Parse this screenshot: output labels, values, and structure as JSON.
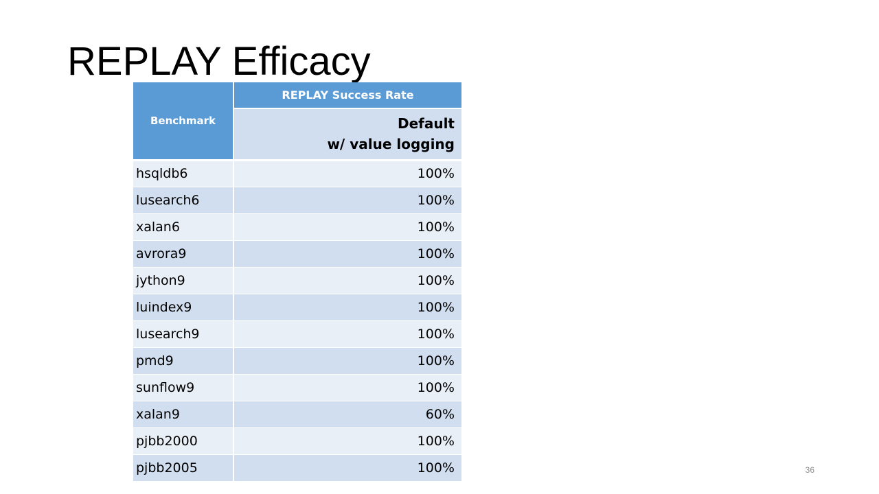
{
  "slide": {
    "title": "REPLAY Efficacy",
    "number": "36"
  },
  "table": {
    "header": {
      "benchmark": "Benchmark",
      "group": "REPLAY Success Rate",
      "sub_line1": "Default",
      "sub_line2": "w/ value logging"
    },
    "rows": [
      {
        "benchmark": "hsqldb6",
        "rate": "100%"
      },
      {
        "benchmark": "lusearch6",
        "rate": "100%"
      },
      {
        "benchmark": "xalan6",
        "rate": "100%"
      },
      {
        "benchmark": "avrora9",
        "rate": "100%"
      },
      {
        "benchmark": "jython9",
        "rate": "100%"
      },
      {
        "benchmark": "luindex9",
        "rate": "100%"
      },
      {
        "benchmark": "lusearch9",
        "rate": "100%"
      },
      {
        "benchmark": "pmd9",
        "rate": "100%"
      },
      {
        "benchmark": "sunflow9",
        "rate": "100%"
      },
      {
        "benchmark": "xalan9",
        "rate": "60%"
      },
      {
        "benchmark": "pjbb2000",
        "rate": "100%"
      },
      {
        "benchmark": "pjbb2005",
        "rate": "100%"
      }
    ]
  },
  "colors": {
    "header_blue": "#5b9bd5",
    "row_light": "#e9eff7",
    "row_dark": "#d0deef"
  }
}
